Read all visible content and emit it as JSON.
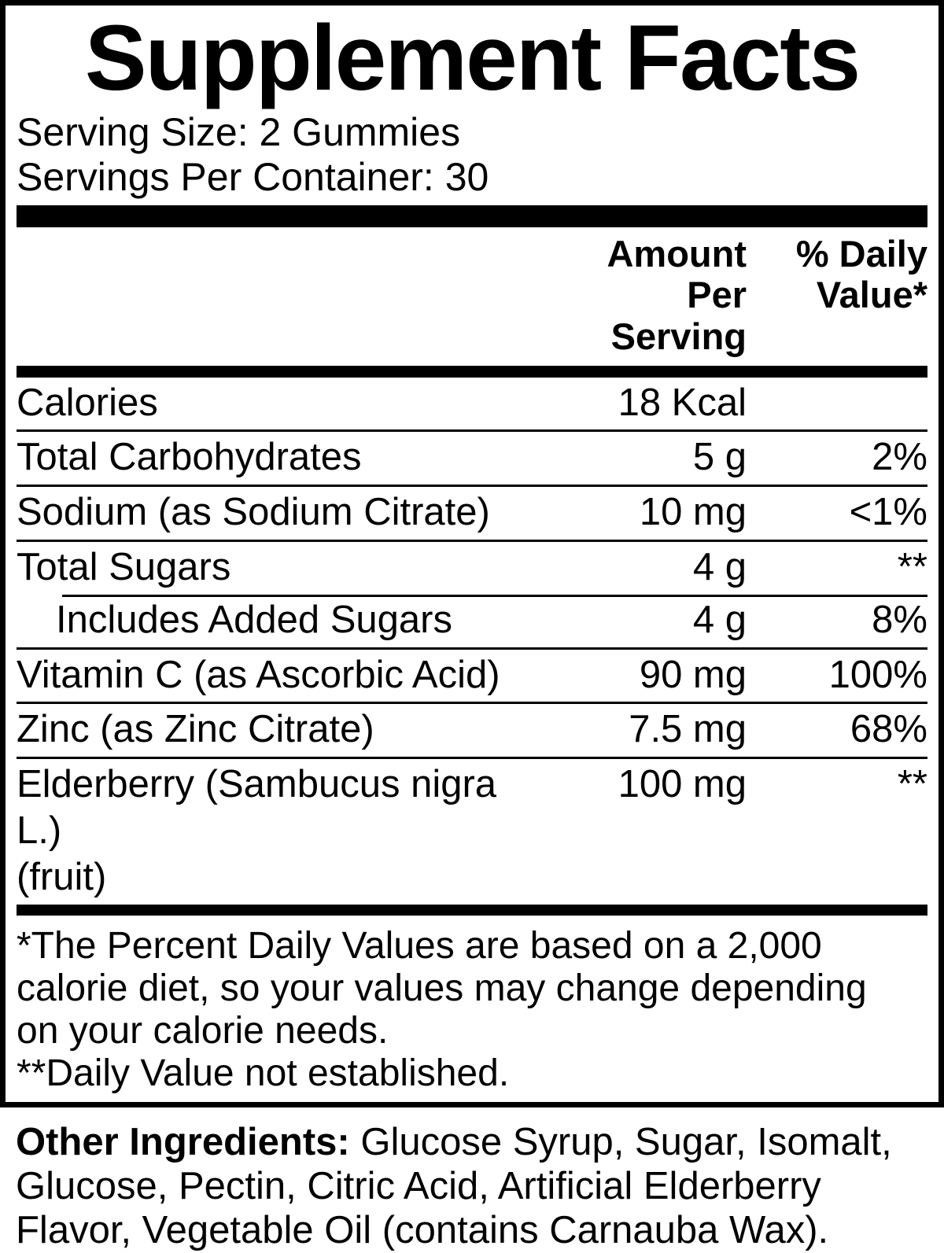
{
  "label": {
    "title": "Supplement Facts",
    "serving_size": "Serving Size: 2 Gummies",
    "servings_per_container": "Servings Per Container: 30",
    "header": {
      "amount": "Amount Per\nServing",
      "daily_value": "% Daily\nValue*"
    },
    "rows": [
      {
        "name": "Calories",
        "amount": "18 Kcal",
        "dv": "",
        "indent": false
      },
      {
        "name": "Total Carbohydrates",
        "amount": "5 g",
        "dv": "2%",
        "indent": false
      },
      {
        "name": "Sodium (as Sodium Citrate)",
        "amount": "10 mg",
        "dv": "<1%",
        "indent": false
      },
      {
        "name": "Total Sugars",
        "amount": "4 g",
        "dv": "**",
        "indent": false
      },
      {
        "name": "Includes Added Sugars",
        "amount": "4 g",
        "dv": "8%",
        "indent": true
      },
      {
        "name": "Vitamin C (as Ascorbic Acid)",
        "amount": "90 mg",
        "dv": "100%",
        "indent": false
      },
      {
        "name": "Zinc (as Zinc Citrate)",
        "amount": "7.5 mg",
        "dv": "68%",
        "indent": false
      },
      {
        "name": "Elderberry (Sambucus nigra L.)\n(fruit)",
        "amount": "100 mg",
        "dv": "**",
        "indent": false
      }
    ],
    "footnotes": [
      "*The Percent Daily Values are based on a 2,000\ncalorie diet, so your values may change depending\non your calorie needs.",
      "**Daily Value not established."
    ]
  },
  "other_ingredients": {
    "label": "Other Ingredients:",
    "text": " Glucose Syrup, Sugar, Isomalt, Glucose, Pectin, Citric Acid, Artificial Elderberry Flavor, Vegetable Oil (contains Carnauba Wax)."
  },
  "colors": {
    "text": "#000000",
    "background": "#ffffff"
  }
}
